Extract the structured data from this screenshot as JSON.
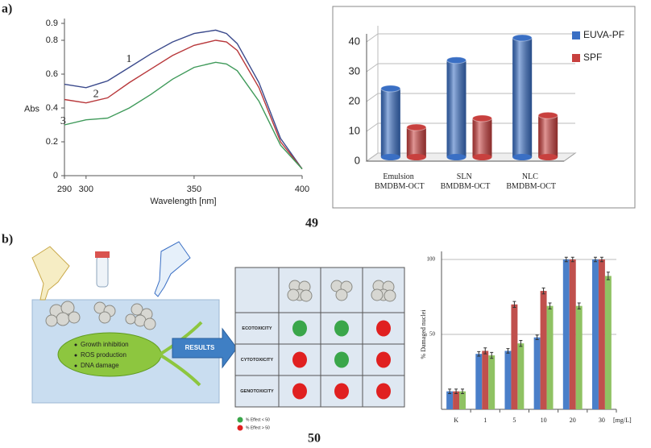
{
  "panel_labels": [
    "a)",
    "b)"
  ],
  "captions": [
    "49",
    "50"
  ],
  "chart_data": [
    {
      "type": "line",
      "x_label": "Wavelength [nm]",
      "y_label": "Abs",
      "x": [
        290,
        300,
        310,
        320,
        330,
        340,
        350,
        360,
        365,
        370,
        380,
        390,
        400
      ],
      "series": [
        {
          "name": "1",
          "color": "#3b4a8c",
          "values": [
            0.54,
            0.52,
            0.56,
            0.64,
            0.72,
            0.79,
            0.84,
            0.86,
            0.84,
            0.78,
            0.55,
            0.22,
            0.04
          ]
        },
        {
          "name": "2",
          "color": "#b8383b",
          "values": [
            0.45,
            0.43,
            0.46,
            0.55,
            0.63,
            0.71,
            0.77,
            0.8,
            0.79,
            0.74,
            0.52,
            0.2,
            0.04
          ]
        },
        {
          "name": "3",
          "color": "#3f9a5a",
          "values": [
            0.3,
            0.33,
            0.34,
            0.4,
            0.48,
            0.57,
            0.64,
            0.67,
            0.66,
            0.62,
            0.44,
            0.18,
            0.04
          ]
        }
      ],
      "xlim": [
        290,
        400
      ],
      "ylim": [
        0,
        0.9
      ],
      "xticks": [
        290,
        300,
        350,
        400
      ],
      "yticks": [
        0,
        0.2,
        0.4,
        0.6,
        0.8,
        0.9
      ]
    },
    {
      "type": "bar",
      "three_d": true,
      "categories": [
        "Emulsion BMDBM-OCT",
        "SLN BMDBM-OCT",
        "NLC BMDBM-OCT"
      ],
      "series": [
        {
          "name": "EUVA-PF",
          "color": "#3a6fc4",
          "values": [
            23,
            32.5,
            40
          ]
        },
        {
          "name": "SPF",
          "color": "#c8403e",
          "values": [
            10,
            13,
            14
          ]
        }
      ],
      "ylim": [
        0,
        40
      ],
      "yticks": [
        0,
        10,
        20,
        30,
        40
      ],
      "grid": true,
      "legend": "right"
    },
    {
      "type": "bar",
      "three_d": false,
      "x_label": "[mg/L]",
      "y_label": "% Damaged nuclei",
      "categories": [
        "K",
        "1",
        "5",
        "10",
        "20",
        "30"
      ],
      "series": [
        {
          "color": "#4a7fc9",
          "values": [
            12,
            37,
            39,
            48,
            100,
            100
          ],
          "errors": [
            1.5,
            1.5,
            1.5,
            1.5,
            1.5,
            1.5
          ]
        },
        {
          "color": "#c0504d",
          "values": [
            12,
            39,
            70,
            79,
            100,
            100
          ],
          "errors": [
            1.5,
            2,
            2,
            2,
            1.5,
            1.5
          ]
        },
        {
          "color": "#8fc263",
          "values": [
            12,
            36,
            44,
            69,
            69,
            89
          ],
          "errors": [
            1.5,
            2,
            2,
            2,
            2,
            2.5
          ]
        }
      ],
      "ylim": [
        0,
        100
      ],
      "yticks": [
        50,
        100
      ],
      "grid": true
    }
  ],
  "diagram": {
    "effects": [
      "Growth inhibition",
      "ROS production",
      "DNA damage"
    ],
    "arrow": "RESULTS",
    "table": {
      "rows": [
        {
          "label": "ECOTOXICITY",
          "cells": [
            "#3aa64a",
            "#3aa64a",
            "#e02020"
          ]
        },
        {
          "label": "CYTOTOXICITY",
          "cells": [
            "#e02020",
            "#3aa64a",
            "#e02020"
          ]
        },
        {
          "label": "GENOTOXICITY",
          "cells": [
            "#e02020",
            "#e02020",
            "#e02020"
          ]
        }
      ],
      "legend": [
        {
          "label": "% Effect < 50",
          "color": "#3aa64a"
        },
        {
          "label": "% Effect > 50",
          "color": "#e02020"
        }
      ]
    }
  }
}
